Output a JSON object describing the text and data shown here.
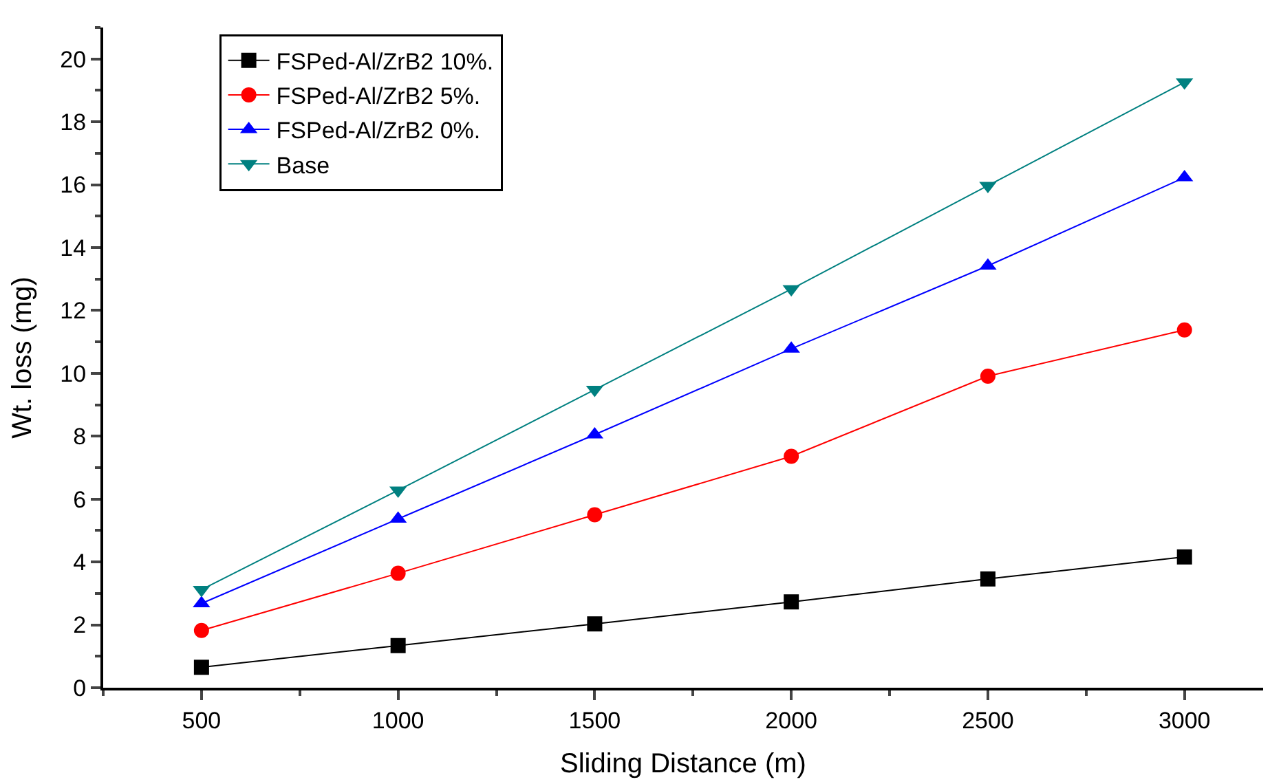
{
  "chart_data": {
    "type": "line",
    "xlabel": "Sliding Distance (m)",
    "ylabel": "Wt. loss (mg)",
    "x": [
      500,
      1000,
      1500,
      2000,
      2500,
      3000
    ],
    "series": [
      {
        "name": "FSPed-Al/ZrB2 10%.",
        "color": "#000000",
        "marker": "square",
        "values": [
          0.65,
          1.34,
          2.03,
          2.73,
          3.46,
          4.16
        ]
      },
      {
        "name": "FSPed-Al/ZrB2 5%.",
        "color": "#ff0000",
        "marker": "circle",
        "values": [
          1.82,
          3.64,
          5.5,
          7.36,
          9.91,
          11.38
        ]
      },
      {
        "name": "FSPed-Al/ZrB2 0%.",
        "color": "#0000ff",
        "marker": "triangle",
        "values": [
          2.68,
          5.37,
          8.05,
          10.78,
          13.42,
          16.23
        ]
      },
      {
        "name": "Base",
        "color": "#008080",
        "marker": "triangle-down",
        "values": [
          3.12,
          6.28,
          9.48,
          12.68,
          15.97,
          19.26
        ]
      }
    ],
    "xlim": [
      250,
      3200
    ],
    "xticks": [
      500,
      1000,
      1500,
      2000,
      2500,
      3000
    ],
    "ylim": [
      0,
      21
    ],
    "yticks": [
      0,
      2,
      4,
      6,
      8,
      10,
      12,
      14,
      16,
      18,
      20
    ],
    "legend": "top left",
    "line_style": "solid"
  }
}
